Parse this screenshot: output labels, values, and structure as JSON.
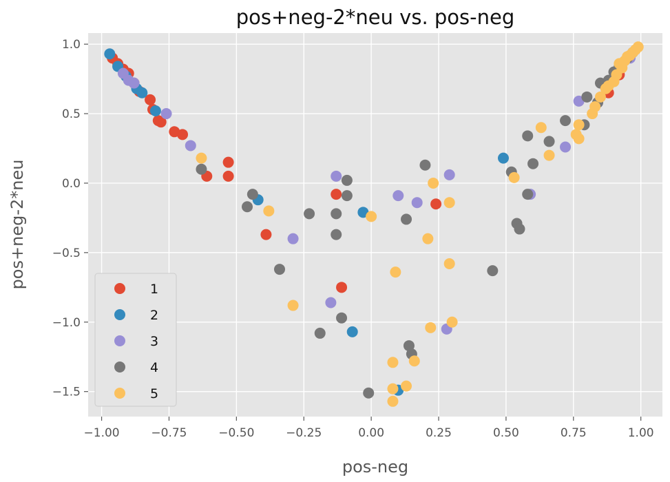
{
  "chart_data": {
    "type": "scatter",
    "title": "pos+neg-2*neu vs. pos-neg",
    "xlabel": "pos-neg",
    "ylabel": "pos+neg-2*neu",
    "xlim": [
      -1.05,
      1.08
    ],
    "ylim": [
      -1.68,
      1.08
    ],
    "xticks": [
      -1.0,
      -0.75,
      -0.5,
      -0.25,
      0.0,
      0.25,
      0.5,
      0.75,
      1.0
    ],
    "xtick_labels": [
      "−1.00",
      "−0.75",
      "−0.50",
      "−0.25",
      "0.00",
      "0.25",
      "0.50",
      "0.75",
      "1.00"
    ],
    "yticks": [
      1.0,
      0.5,
      0.0,
      -0.5,
      -1.0,
      -1.5
    ],
    "ytick_labels": [
      "1.0",
      "0.5",
      "0.0",
      "−0.5",
      "−1.0",
      "−1.5"
    ],
    "grid": true,
    "legend_position": "lower-left",
    "background": "#e5e5e5",
    "series": [
      {
        "name": "1",
        "color": "#e24a33",
        "points": [
          [
            -0.96,
            0.9
          ],
          [
            -0.94,
            0.86
          ],
          [
            -0.92,
            0.82
          ],
          [
            -0.9,
            0.79
          ],
          [
            -0.88,
            0.72
          ],
          [
            -0.86,
            0.66
          ],
          [
            -0.82,
            0.6
          ],
          [
            -0.81,
            0.53
          ],
          [
            -0.79,
            0.45
          ],
          [
            -0.78,
            0.44
          ],
          [
            -0.73,
            0.37
          ],
          [
            -0.7,
            0.35
          ],
          [
            -0.61,
            0.05
          ],
          [
            -0.53,
            0.05
          ],
          [
            -0.53,
            0.15
          ],
          [
            -0.39,
            -0.37
          ],
          [
            -0.13,
            -0.08
          ],
          [
            -0.11,
            -0.75
          ],
          [
            0.24,
            -0.15
          ],
          [
            0.88,
            0.65
          ],
          [
            0.92,
            0.78
          ]
        ]
      },
      {
        "name": "2",
        "color": "#348abd",
        "points": [
          [
            -0.97,
            0.93
          ],
          [
            -0.94,
            0.84
          ],
          [
            -0.91,
            0.77
          ],
          [
            -0.87,
            0.68
          ],
          [
            -0.85,
            0.65
          ],
          [
            -0.8,
            0.52
          ],
          [
            -0.42,
            -0.12
          ],
          [
            -0.03,
            -0.21
          ],
          [
            -0.07,
            -1.07
          ],
          [
            0.49,
            0.18
          ],
          [
            0.1,
            -1.49
          ]
        ]
      },
      {
        "name": "3",
        "color": "#988ed5",
        "points": [
          [
            -0.92,
            0.79
          ],
          [
            -0.9,
            0.74
          ],
          [
            -0.88,
            0.72
          ],
          [
            -0.76,
            0.5
          ],
          [
            -0.67,
            0.27
          ],
          [
            -0.29,
            -0.4
          ],
          [
            -0.13,
            0.05
          ],
          [
            -0.15,
            -0.86
          ],
          [
            0.1,
            -0.09
          ],
          [
            0.17,
            -0.14
          ],
          [
            0.29,
            0.06
          ],
          [
            0.28,
            -1.05
          ],
          [
            0.59,
            -0.08
          ],
          [
            0.72,
            0.26
          ],
          [
            0.77,
            0.59
          ],
          [
            0.84,
            0.58
          ],
          [
            0.96,
            0.9
          ]
        ]
      },
      {
        "name": "4",
        "color": "#777777",
        "points": [
          [
            -0.63,
            0.1
          ],
          [
            -0.46,
            -0.17
          ],
          [
            -0.44,
            -0.08
          ],
          [
            -0.34,
            -0.62
          ],
          [
            -0.23,
            -0.22
          ],
          [
            -0.19,
            -1.08
          ],
          [
            -0.13,
            -0.37
          ],
          [
            -0.13,
            -0.22
          ],
          [
            -0.11,
            -0.97
          ],
          [
            -0.09,
            -0.09
          ],
          [
            -0.09,
            0.02
          ],
          [
            -0.01,
            -1.51
          ],
          [
            0.13,
            -0.26
          ],
          [
            0.14,
            -1.17
          ],
          [
            0.15,
            -1.23
          ],
          [
            0.2,
            0.13
          ],
          [
            0.45,
            -0.63
          ],
          [
            0.52,
            0.08
          ],
          [
            0.54,
            -0.29
          ],
          [
            0.55,
            -0.33
          ],
          [
            0.58,
            -0.08
          ],
          [
            0.58,
            0.34
          ],
          [
            0.6,
            0.14
          ],
          [
            0.66,
            0.3
          ],
          [
            0.72,
            0.45
          ],
          [
            0.79,
            0.42
          ],
          [
            0.8,
            0.62
          ],
          [
            0.84,
            0.58
          ],
          [
            0.85,
            0.72
          ],
          [
            0.88,
            0.74
          ],
          [
            0.9,
            0.8
          ],
          [
            0.92,
            0.84
          ],
          [
            0.95,
            0.9
          ],
          [
            0.97,
            0.94
          ]
        ]
      },
      {
        "name": "5",
        "color": "#fbc15e",
        "points": [
          [
            -0.63,
            0.18
          ],
          [
            -0.38,
            -0.2
          ],
          [
            -0.29,
            -0.88
          ],
          [
            0.0,
            -0.24
          ],
          [
            0.08,
            -1.29
          ],
          [
            0.08,
            -1.48
          ],
          [
            0.08,
            -1.57
          ],
          [
            0.09,
            -0.64
          ],
          [
            0.13,
            -1.46
          ],
          [
            0.16,
            -1.28
          ],
          [
            0.21,
            -0.4
          ],
          [
            0.22,
            -1.04
          ],
          [
            0.23,
            0.0
          ],
          [
            0.29,
            -0.14
          ],
          [
            0.29,
            -0.58
          ],
          [
            0.3,
            -1.0
          ],
          [
            0.53,
            0.04
          ],
          [
            0.63,
            0.4
          ],
          [
            0.66,
            0.2
          ],
          [
            0.76,
            0.35
          ],
          [
            0.77,
            0.32
          ],
          [
            0.77,
            0.42
          ],
          [
            0.82,
            0.5
          ],
          [
            0.83,
            0.55
          ],
          [
            0.85,
            0.62
          ],
          [
            0.87,
            0.68
          ],
          [
            0.88,
            0.7
          ],
          [
            0.9,
            0.73
          ],
          [
            0.91,
            0.78
          ],
          [
            0.92,
            0.86
          ],
          [
            0.93,
            0.83
          ],
          [
            0.94,
            0.88
          ],
          [
            0.95,
            0.91
          ],
          [
            0.96,
            0.92
          ],
          [
            0.97,
            0.94
          ],
          [
            0.98,
            0.96
          ],
          [
            0.99,
            0.98
          ]
        ]
      }
    ]
  }
}
